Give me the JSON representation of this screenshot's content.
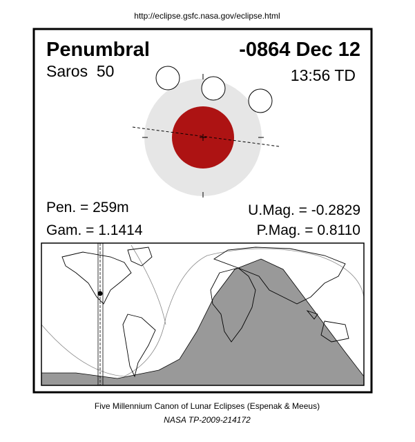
{
  "header": {
    "url": "http://eclipse.gsfc.nasa.gov/eclipse.html"
  },
  "eclipse": {
    "type": "Penumbral",
    "date": "-0864 Dec 12",
    "saros": "Saros  50",
    "time": "13:56 TD",
    "penumbral_duration": "Pen. = 259m",
    "gamma": "Gam. = 1.1414",
    "umbral_magnitude": "U.Mag. = -0.2829",
    "penumbral_magnitude": "P.Mag. = 0.8110"
  },
  "footer": {
    "credit": "Five Millennium Canon of Lunar Eclipses (Espenak & Meeus)",
    "reference": "NASA TP-2009-214172"
  }
}
